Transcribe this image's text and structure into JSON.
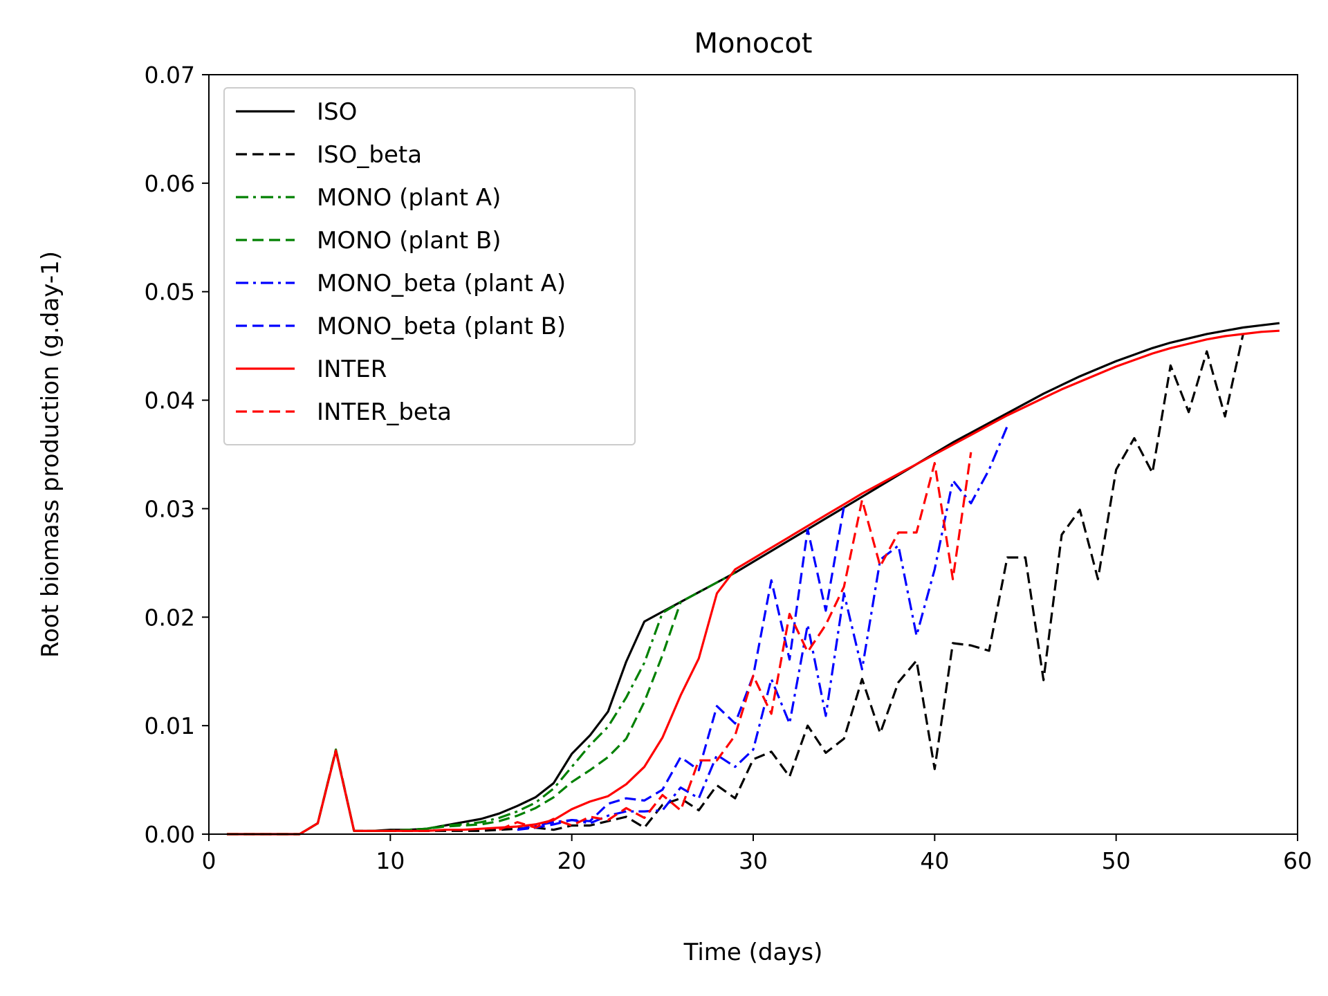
{
  "chart_data": {
    "type": "line",
    "title": "Monocot",
    "xlabel": "Time (days)",
    "ylabel": "Root biomass production (g.day-1)",
    "xlim": [
      0,
      60
    ],
    "ylim": [
      0,
      0.07
    ],
    "xticks": [
      0,
      10,
      20,
      30,
      40,
      50,
      60
    ],
    "xtick_labels": [
      "0",
      "10",
      "20",
      "30",
      "40",
      "50",
      "60"
    ],
    "yticks": [
      0,
      0.01,
      0.02,
      0.03,
      0.04,
      0.05,
      0.06,
      0.07
    ],
    "ytick_labels": [
      "0.00",
      "0.01",
      "0.02",
      "0.03",
      "0.04",
      "0.05",
      "0.06",
      "0.07"
    ],
    "grid": false,
    "legend_position": "top-left",
    "series": [
      {
        "name": "ISO",
        "color": "#000000",
        "style": "solid",
        "x": [
          1,
          2,
          3,
          4,
          5,
          6,
          7,
          8,
          9,
          10,
          11,
          12,
          13,
          14,
          15,
          16,
          17,
          18,
          19,
          20,
          21,
          22,
          23,
          24,
          25,
          26,
          27,
          28,
          29,
          30,
          31,
          32,
          33,
          34,
          35,
          36,
          37,
          38,
          39,
          40,
          41,
          42,
          43,
          44,
          45,
          46,
          47,
          48,
          49,
          50,
          51,
          52,
          53,
          54,
          55,
          56,
          57,
          58,
          59
        ],
        "y": [
          0,
          0,
          0,
          0,
          0,
          0.001,
          0.0077,
          0.0003,
          0.0003,
          0.0004,
          0.0004,
          0.0005,
          0.0008,
          0.0011,
          0.0014,
          0.0019,
          0.0026,
          0.0034,
          0.0047,
          0.0074,
          0.0091,
          0.0113,
          0.0159,
          0.0196,
          0.0205,
          0.0214,
          0.0223,
          0.0232,
          0.0241,
          0.0251,
          0.0261,
          0.0271,
          0.0281,
          0.0291,
          0.0301,
          0.0311,
          0.0321,
          0.0331,
          0.0341,
          0.0351,
          0.0361,
          0.037,
          0.0379,
          0.0388,
          0.0397,
          0.0406,
          0.0414,
          0.0422,
          0.0429,
          0.0436,
          0.0442,
          0.0448,
          0.0453,
          0.0457,
          0.0461,
          0.0464,
          0.0467,
          0.0469,
          0.0471
        ]
      },
      {
        "name": "ISO_beta",
        "color": "#000000",
        "style": "dashed",
        "x": [
          1,
          2,
          3,
          4,
          5,
          6,
          7,
          8,
          9,
          10,
          11,
          12,
          13,
          14,
          15,
          16,
          17,
          18,
          19,
          20,
          21,
          22,
          23,
          24,
          25,
          26,
          27,
          28,
          29,
          30,
          31,
          32,
          33,
          34,
          35,
          36,
          37,
          38,
          39,
          40,
          41,
          42,
          43,
          44,
          45,
          46,
          47,
          48,
          49,
          50,
          51,
          52,
          53,
          54,
          55,
          56,
          57
        ],
        "y": [
          0,
          0,
          0,
          0,
          0,
          0.001,
          0.0077,
          0.0003,
          0.0003,
          0.0003,
          0.0003,
          0.0003,
          0.0003,
          0.0003,
          0.0003,
          0.0004,
          0.0005,
          0.0006,
          0.0004,
          0.0008,
          0.0008,
          0.0012,
          0.0016,
          0.0006,
          0.0027,
          0.0033,
          0.0022,
          0.0045,
          0.0033,
          0.0069,
          0.0076,
          0.0053,
          0.01,
          0.0075,
          0.0088,
          0.0143,
          0.0093,
          0.014,
          0.016,
          0.006,
          0.0176,
          0.0174,
          0.0169,
          0.0255,
          0.0255,
          0.0142,
          0.0276,
          0.0299,
          0.0235,
          0.0336,
          0.0365,
          0.0333,
          0.0432,
          0.0389,
          0.0445,
          0.0385,
          0.0461
        ]
      },
      {
        "name": "MONO (plant A)",
        "color": "#008000",
        "style": "dashdot",
        "x": [
          1,
          2,
          3,
          4,
          5,
          6,
          7,
          8,
          9,
          10,
          11,
          12,
          13,
          14,
          15,
          16,
          17,
          18,
          19,
          20,
          21,
          22,
          23,
          24,
          25,
          26,
          27,
          28,
          29
        ],
        "y": [
          0,
          0,
          0,
          0,
          0,
          0.001,
          0.0078,
          0.0003,
          0.0003,
          0.0003,
          0.0004,
          0.0005,
          0.0008,
          0.0009,
          0.0011,
          0.0015,
          0.0021,
          0.0029,
          0.0042,
          0.0062,
          0.0082,
          0.0099,
          0.0126,
          0.0158,
          0.0204,
          0.0214,
          0.0223,
          0.0232,
          0.0241
        ]
      },
      {
        "name": "MONO (plant B)",
        "color": "#008000",
        "style": "dashed",
        "x": [
          1,
          2,
          3,
          4,
          5,
          6,
          7,
          8,
          9,
          10,
          11,
          12,
          13,
          14,
          15,
          16,
          17,
          18,
          19,
          20,
          21,
          22,
          23,
          24,
          25,
          26
        ],
        "y": [
          0,
          0,
          0,
          0,
          0,
          0.001,
          0.0078,
          0.0003,
          0.0003,
          0.0003,
          0.0004,
          0.0005,
          0.0007,
          0.0008,
          0.0009,
          0.0012,
          0.0017,
          0.0024,
          0.0034,
          0.0048,
          0.0059,
          0.0071,
          0.0088,
          0.0122,
          0.0165,
          0.0214
        ]
      },
      {
        "name": "MONO_beta (plant A)",
        "color": "#0000ff",
        "style": "dashdot",
        "x": [
          17,
          18,
          19,
          20,
          21,
          22,
          23,
          24,
          25,
          26,
          27,
          28,
          29,
          30,
          31,
          32,
          33,
          34,
          35,
          36,
          37,
          38,
          39,
          40,
          41,
          42,
          43,
          44
        ],
        "y": [
          0.0004,
          0.0008,
          0.0011,
          0.0013,
          0.001,
          0.0017,
          0.0021,
          0.0021,
          0.0022,
          0.0043,
          0.0033,
          0.0073,
          0.0062,
          0.0078,
          0.0143,
          0.0102,
          0.0193,
          0.0109,
          0.0222,
          0.0152,
          0.0253,
          0.0266,
          0.0183,
          0.0244,
          0.0326,
          0.0305,
          0.0336,
          0.0376
        ]
      },
      {
        "name": "MONO_beta (plant B)",
        "color": "#0000ff",
        "style": "dashed",
        "x": [
          17,
          18,
          19,
          20,
          21,
          22,
          23,
          24,
          25,
          26,
          27,
          28,
          29,
          30,
          31,
          32,
          33,
          34,
          35
        ],
        "y": [
          0.0004,
          0.0006,
          0.0009,
          0.0013,
          0.0012,
          0.0028,
          0.0033,
          0.0031,
          0.0041,
          0.0071,
          0.0059,
          0.0118,
          0.0102,
          0.0146,
          0.0234,
          0.0161,
          0.0281,
          0.0206,
          0.0302
        ]
      },
      {
        "name": "INTER",
        "color": "#ff0000",
        "style": "solid",
        "x": [
          1,
          2,
          3,
          4,
          5,
          6,
          7,
          8,
          9,
          10,
          11,
          12,
          13,
          14,
          15,
          16,
          17,
          18,
          19,
          20,
          21,
          22,
          23,
          24,
          25,
          26,
          27,
          28,
          29,
          30,
          31,
          32,
          33,
          34,
          35,
          36,
          37,
          38,
          39,
          40,
          41,
          42,
          43,
          44,
          45,
          46,
          47,
          48,
          49,
          50,
          51,
          52,
          53,
          54,
          55,
          56,
          57,
          58,
          59
        ],
        "y": [
          0,
          0,
          0,
          0,
          0,
          0.001,
          0.0077,
          0.0003,
          0.0003,
          0.0003,
          0.0003,
          0.0003,
          0.0004,
          0.0004,
          0.0005,
          0.0006,
          0.0007,
          0.0009,
          0.0013,
          0.0023,
          0.003,
          0.0035,
          0.0046,
          0.0062,
          0.0089,
          0.0128,
          0.0162,
          0.0222,
          0.0244,
          0.0254,
          0.0264,
          0.0274,
          0.0284,
          0.0294,
          0.0304,
          0.0314,
          0.0323,
          0.0332,
          0.0341,
          0.035,
          0.0359,
          0.0368,
          0.0377,
          0.0386,
          0.0394,
          0.0402,
          0.041,
          0.0417,
          0.0424,
          0.0431,
          0.0437,
          0.0443,
          0.0448,
          0.0452,
          0.0456,
          0.0459,
          0.0461,
          0.0463,
          0.0464
        ]
      },
      {
        "name": "INTER_beta",
        "color": "#ff0000",
        "style": "dashed",
        "x": [
          16,
          17,
          18,
          19,
          20,
          21,
          22,
          23,
          24,
          25,
          26,
          27,
          28,
          29,
          30,
          31,
          32,
          33,
          34,
          35,
          36,
          37,
          38,
          39,
          40,
          41,
          42
        ],
        "y": [
          0.0004,
          0.0011,
          0.0006,
          0.0014,
          0.0008,
          0.0016,
          0.0013,
          0.0024,
          0.0015,
          0.0036,
          0.0022,
          0.0068,
          0.0068,
          0.0091,
          0.0146,
          0.0111,
          0.0203,
          0.0168,
          0.0193,
          0.0228,
          0.0308,
          0.0247,
          0.0278,
          0.0278,
          0.0342,
          0.0235,
          0.0352
        ]
      }
    ]
  }
}
